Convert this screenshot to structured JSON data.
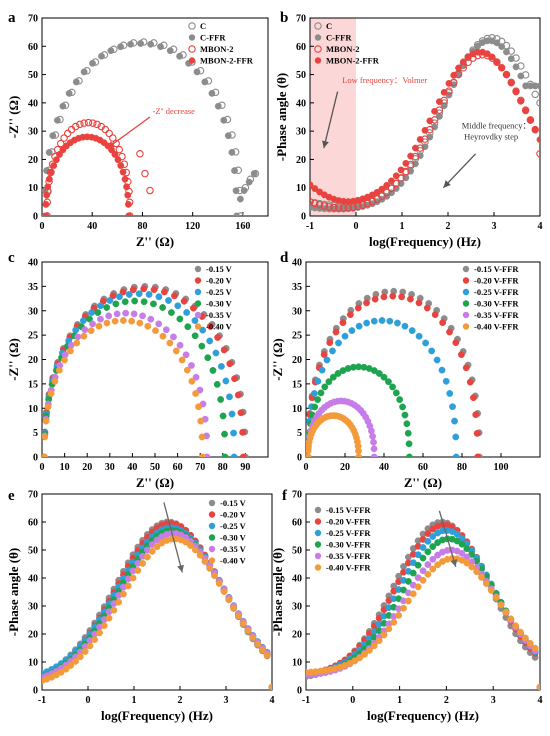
{
  "chart_data": [
    {
      "id": "a",
      "letter": "a",
      "type": "scatter",
      "xlabel": "Z'' (Ω)",
      "ylabel": "-Z'' (Ω)",
      "xlim": [
        0,
        180
      ],
      "ylim": [
        0,
        70
      ],
      "xticks": [
        0,
        40,
        80,
        120,
        160
      ],
      "yticks": [
        0,
        10,
        20,
        30,
        40,
        50,
        60,
        70
      ],
      "legend_position": "top-right",
      "annotations": [
        {
          "text": "-Z'' decrease",
          "color": "#e8433f",
          "x": 88,
          "y": 36
        },
        {
          "text": "",
          "arrow_from": [
            86,
            35
          ],
          "arrow_to": [
            52,
            24
          ],
          "color": "#e8433f"
        }
      ],
      "series": [
        {
          "name": "C",
          "color": "#8c8c8c",
          "filled": false,
          "kind": "arc",
          "x0": 4,
          "x1": 158,
          "peak": 61.5,
          "tail": [
            [
              162,
              10
            ],
            [
              166,
              13
            ],
            [
              170,
              15
            ]
          ]
        },
        {
          "name": "C-FFR",
          "color": "#8c8c8c",
          "filled": true,
          "kind": "arc",
          "x0": 2,
          "x1": 155,
          "peak": 61,
          "tail": [
            [
              158,
              6
            ],
            [
              161,
              9
            ],
            [
              165,
              12
            ],
            [
              169,
              15
            ]
          ]
        },
        {
          "name": "MBON-2",
          "color": "#e8433f",
          "filled": false,
          "kind": "arc",
          "x0": 4,
          "x1": 70,
          "peak": 33,
          "tail": [
            [
              78,
              22
            ],
            [
              82,
              15
            ],
            [
              86,
              9
            ]
          ]
        },
        {
          "name": "MBON-2-FFR",
          "color": "#e8433f",
          "filled": true,
          "kind": "arc",
          "x0": 3,
          "x1": 69,
          "peak": 28,
          "tail": []
        }
      ]
    },
    {
      "id": "b",
      "letter": "b",
      "type": "scatter",
      "xlabel": "log(Frequency) (Hz)",
      "ylabel": "-Phase angle (θ)",
      "xlim": [
        -1,
        4
      ],
      "ylim": [
        0,
        70
      ],
      "xticks": [
        -1,
        0,
        1,
        2,
        3,
        4
      ],
      "yticks": [
        0,
        10,
        20,
        30,
        40,
        50,
        60,
        70
      ],
      "legend_position": "top-left",
      "shaded_region": {
        "x": [
          -1,
          0
        ],
        "color": "#fbd0d0"
      },
      "annotations": [
        {
          "text": "Low frequency：Volmer",
          "color": "#e8433f",
          "x": -0.3,
          "y": 47
        },
        {
          "text": "",
          "arrow_from": [
            -0.4,
            44
          ],
          "arrow_to": [
            -0.7,
            24
          ],
          "color": "#555555"
        },
        {
          "text": "Middle frequency：",
          "color": "#333333",
          "x": 2.3,
          "y": 31
        },
        {
          "text": "Heyrovdky step",
          "color": "#333333",
          "x": 2.35,
          "y": 27
        },
        {
          "text": "",
          "arrow_from": [
            2.6,
            22
          ],
          "arrow_to": [
            1.9,
            10
          ],
          "color": "#555555"
        }
      ],
      "series": [
        {
          "name": "C",
          "color": "#8c8c8c",
          "filled": false,
          "kind": "bell",
          "base": 3,
          "peak": 63,
          "center": 2.95,
          "width": 1.05,
          "start": 5,
          "end": 40
        },
        {
          "name": "C-FFR",
          "color": "#8c8c8c",
          "filled": true,
          "kind": "bell",
          "base": 2,
          "peak": 62,
          "center": 2.9,
          "width": 1.0,
          "start": 3,
          "end": 46
        },
        {
          "name": "MBON-2",
          "color": "#e8433f",
          "filled": false,
          "kind": "bell",
          "base": 2,
          "peak": 57,
          "center": 2.75,
          "width": 1.0,
          "start": 5,
          "end": 22
        },
        {
          "name": "MBON-2-FFR",
          "color": "#e8433f",
          "filled": true,
          "kind": "bell",
          "base": 4,
          "peak": 58,
          "center": 2.7,
          "width": 1.0,
          "start": 11,
          "end": 27
        }
      ]
    },
    {
      "id": "c",
      "letter": "c",
      "type": "scatter",
      "xlabel": "Z'' (Ω)",
      "ylabel": "-Z'' (Ω)",
      "xlim": [
        0,
        100
      ],
      "ylim": [
        0,
        40
      ],
      "xticks": [
        0,
        10,
        20,
        30,
        40,
        50,
        60,
        70,
        80,
        90
      ],
      "yticks": [
        0,
        5,
        10,
        15,
        20,
        25,
        30,
        35,
        40
      ],
      "legend_position": "top-right",
      "annotations": [],
      "series": [
        {
          "name": "-0.15 V",
          "color": "#8c8c8c",
          "filled": true,
          "kind": "arc",
          "x0": 1,
          "x1": 90,
          "peak": 35,
          "tail": []
        },
        {
          "name": "-0.20 V",
          "color": "#e8433f",
          "filled": true,
          "kind": "arc",
          "x0": 1,
          "x1": 89,
          "peak": 34.5,
          "tail": []
        },
        {
          "name": "-0.25 V",
          "color": "#2e9fd8",
          "filled": true,
          "kind": "arc",
          "x0": 1,
          "x1": 85,
          "peak": 33.5,
          "tail": []
        },
        {
          "name": "-0.30 V",
          "color": "#1ea34f",
          "filled": true,
          "kind": "arc",
          "x0": 1,
          "x1": 81,
          "peak": 32,
          "tail": []
        },
        {
          "name": "-0.35 V",
          "color": "#c77de8",
          "filled": true,
          "kind": "arc",
          "x0": 1,
          "x1": 73,
          "peak": 29.5,
          "tail": []
        },
        {
          "name": "-0.40 V",
          "color": "#f39a3a",
          "filled": true,
          "kind": "arc",
          "x0": 1,
          "x1": 71,
          "peak": 28,
          "tail": []
        }
      ]
    },
    {
      "id": "d",
      "letter": "d",
      "type": "scatter",
      "xlabel": "Z'' (Ω)",
      "ylabel": "-Z'' (Ω)",
      "xlim": [
        0,
        120
      ],
      "ylim": [
        0,
        40
      ],
      "xticks": [
        0,
        20,
        40,
        60,
        80,
        100
      ],
      "yticks": [
        0,
        5,
        10,
        15,
        20,
        25,
        30,
        35,
        40
      ],
      "legend_position": "top-right",
      "annotations": [],
      "series": [
        {
          "name": "-0.15 V-FFR",
          "color": "#8c8c8c",
          "filled": true,
          "kind": "arc",
          "x0": 1,
          "x1": 89,
          "peak": 34,
          "tail": []
        },
        {
          "name": "-0.20 V-FFR",
          "color": "#e8433f",
          "filled": true,
          "kind": "arc",
          "x0": 1,
          "x1": 88,
          "peak": 33,
          "tail": []
        },
        {
          "name": "-0.25 V-FFR",
          "color": "#2e9fd8",
          "filled": true,
          "kind": "arc",
          "x0": 1,
          "x1": 77,
          "peak": 28,
          "tail": []
        },
        {
          "name": "-0.30 V-FFR",
          "color": "#1ea34f",
          "filled": true,
          "kind": "arc",
          "x0": 1,
          "x1": 53,
          "peak": 18.5,
          "tail": []
        },
        {
          "name": "-0.35 V-FFR",
          "color": "#c77de8",
          "filled": true,
          "kind": "arc",
          "x0": 1,
          "x1": 35,
          "peak": 11.5,
          "tail": []
        },
        {
          "name": "-0.40 V-FFR",
          "color": "#f39a3a",
          "filled": true,
          "kind": "arc",
          "x0": 1,
          "x1": 27,
          "peak": 8.5,
          "tail": []
        }
      ]
    },
    {
      "id": "e",
      "letter": "e",
      "type": "scatter",
      "xlabel": "log(Frequency) (Hz)",
      "ylabel": "-Phase angle (θ)",
      "xlim": [
        -1,
        4
      ],
      "ylim": [
        0,
        70
      ],
      "xticks": [
        -1,
        0,
        1,
        2,
        3,
        4
      ],
      "yticks": [
        0,
        10,
        20,
        30,
        40,
        50,
        60,
        70
      ],
      "legend_position": "top-right",
      "annotations": [
        {
          "text": "",
          "arrow_from": [
            1.65,
            67
          ],
          "arrow_to": [
            2.05,
            42
          ],
          "color": "#666666"
        }
      ],
      "series": [
        {
          "name": "-0.15 V",
          "color": "#8c8c8c",
          "filled": true,
          "kind": "bell",
          "base": 2,
          "peak": 60,
          "center": 1.75,
          "width": 1.15,
          "start": 2,
          "end": 1
        },
        {
          "name": "-0.20 V",
          "color": "#e8433f",
          "filled": true,
          "kind": "bell",
          "base": 2,
          "peak": 59.5,
          "center": 1.78,
          "width": 1.15,
          "start": 2,
          "end": 1
        },
        {
          "name": "-0.25 V",
          "color": "#2e9fd8",
          "filled": true,
          "kind": "bell",
          "base": 3,
          "peak": 58,
          "center": 1.8,
          "width": 1.15,
          "start": 3,
          "end": 1
        },
        {
          "name": "-0.30 V",
          "color": "#1ea34f",
          "filled": true,
          "kind": "bell",
          "base": 2,
          "peak": 57,
          "center": 1.82,
          "width": 1.15,
          "start": 2,
          "end": 1
        },
        {
          "name": "-0.35 V",
          "color": "#c77de8",
          "filled": true,
          "kind": "bell",
          "base": 2,
          "peak": 56,
          "center": 1.85,
          "width": 1.15,
          "start": 2,
          "end": 1
        },
        {
          "name": "-0.40 V",
          "color": "#f39a3a",
          "filled": true,
          "kind": "bell",
          "base": 1,
          "peak": 54,
          "center": 1.88,
          "width": 1.15,
          "start": 1,
          "end": 1
        }
      ]
    },
    {
      "id": "f",
      "letter": "f",
      "type": "scatter",
      "xlabel": "log(Frequency) (Hz)",
      "ylabel": "-Phase angle (θ)",
      "xlim": [
        -1,
        4
      ],
      "ylim": [
        0,
        70
      ],
      "xticks": [
        -1,
        0,
        1,
        2,
        3,
        4
      ],
      "yticks": [
        0,
        10,
        20,
        30,
        40,
        50,
        60,
        70
      ],
      "legend_position": "top-left",
      "annotations": [
        {
          "text": "",
          "arrow_from": [
            1.85,
            64
          ],
          "arrow_to": [
            2.2,
            44
          ],
          "color": "#666666"
        }
      ],
      "series": [
        {
          "name": "-0.15 V-FFR",
          "color": "#8c8c8c",
          "filled": true,
          "kind": "bell",
          "base": 4,
          "peak": 60,
          "center": 1.9,
          "width": 1.0,
          "start": 4,
          "end": 1
        },
        {
          "name": "-0.20 V-FFR",
          "color": "#e8433f",
          "filled": true,
          "kind": "bell",
          "base": 5,
          "peak": 59,
          "center": 1.95,
          "width": 1.0,
          "start": 5,
          "end": 1
        },
        {
          "name": "-0.25 V-FFR",
          "color": "#2e9fd8",
          "filled": true,
          "kind": "bell",
          "base": 5,
          "peak": 57,
          "center": 2.0,
          "width": 1.0,
          "start": 5,
          "end": 1
        },
        {
          "name": "-0.30 V-FFR",
          "color": "#1ea34f",
          "filled": true,
          "kind": "bell",
          "base": 5,
          "peak": 54,
          "center": 2.05,
          "width": 1.0,
          "start": 5,
          "end": 1
        },
        {
          "name": "-0.35 V-FFR",
          "color": "#c77de8",
          "filled": true,
          "kind": "bell",
          "base": 5,
          "peak": 50,
          "center": 2.1,
          "width": 1.0,
          "start": 5,
          "end": 1
        },
        {
          "name": "-0.40 V-FFR",
          "color": "#f39a3a",
          "filled": true,
          "kind": "bell",
          "base": 6,
          "peak": 47,
          "center": 2.15,
          "width": 1.0,
          "start": 6,
          "end": 1
        }
      ]
    }
  ]
}
